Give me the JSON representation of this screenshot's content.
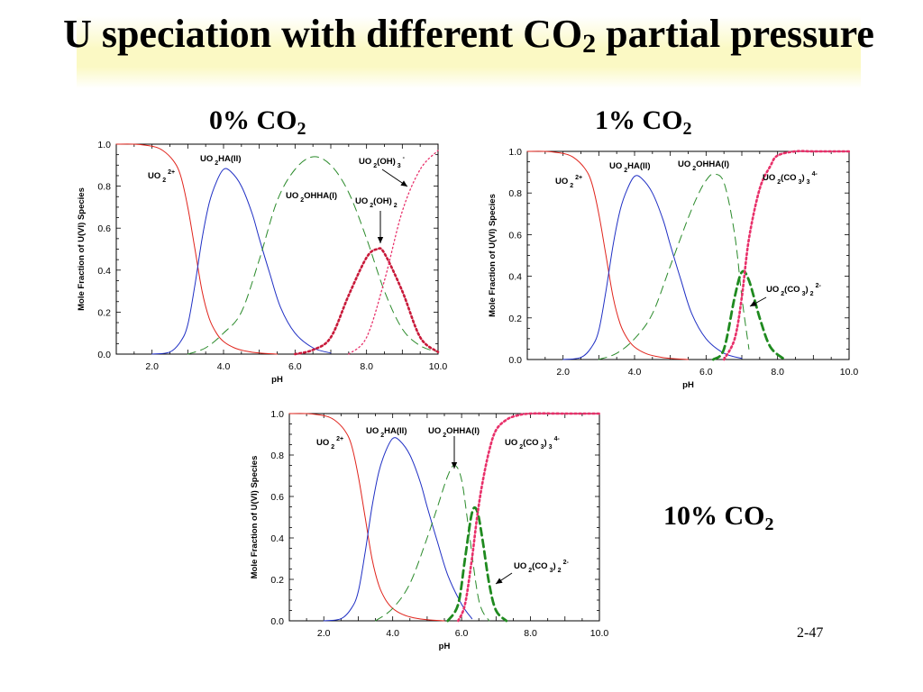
{
  "slide": {
    "title_main": "U speciation with different CO",
    "title_sub": "2",
    "title_end": " partial pressure",
    "page_number": "2-47"
  },
  "labels": {
    "p0": {
      "main": "0% CO",
      "sub": "2"
    },
    "p1": {
      "main": "1% CO",
      "sub": "2"
    },
    "p10": {
      "main": "10% CO",
      "sub": "2"
    }
  },
  "colors": {
    "uo2": "#e0241c",
    "uo2ha": "#1f2fc4",
    "uo2ohha": "#2a8a2a",
    "oh2": "#c81a3a",
    "oh3": "#e8306a",
    "co3": "#1f8a1f"
  },
  "chart_data": [
    {
      "type": "line",
      "panel": "0% CO2",
      "xlabel": "pH",
      "ylabel": "Mole Fraction of U(VI) Species",
      "xlim": [
        1,
        10
      ],
      "ylim": [
        0,
        1
      ],
      "xticks": [
        "2.0",
        "4.0",
        "6.0",
        "8.0",
        "10.0"
      ],
      "yticks": [
        "0.0",
        "0.2",
        "0.4",
        "0.6",
        "0.8",
        "1.0"
      ],
      "series": [
        {
          "name": "UO2 2+",
          "label": [
            "UO",
            "2",
            "2+"
          ],
          "color_key": "uo2",
          "style": "solid",
          "x": [
            1,
            1.5,
            2,
            2.3,
            2.6,
            2.8,
            3,
            3.2,
            3.4,
            3.6,
            3.8,
            4,
            4.3,
            4.6,
            5,
            5.5
          ],
          "y": [
            1,
            1,
            0.99,
            0.97,
            0.92,
            0.85,
            0.7,
            0.5,
            0.3,
            0.17,
            0.1,
            0.06,
            0.03,
            0.015,
            0.005,
            0
          ]
        },
        {
          "name": "UO2HA(II)",
          "label": [
            "UO",
            "2",
            "HA(II)"
          ],
          "color_key": "uo2ha",
          "style": "solid",
          "x": [
            2,
            2.5,
            2.8,
            3.0,
            3.2,
            3.4,
            3.6,
            3.8,
            4.0,
            4.2,
            4.5,
            4.8,
            5.0,
            5.3,
            5.6,
            6.0,
            6.5,
            7.0
          ],
          "y": [
            0,
            0.01,
            0.06,
            0.14,
            0.33,
            0.55,
            0.72,
            0.82,
            0.88,
            0.87,
            0.8,
            0.67,
            0.55,
            0.38,
            0.22,
            0.1,
            0.03,
            0.005
          ]
        },
        {
          "name": "UO2OHHA(I)",
          "label": [
            "UO",
            "2",
            "OHHA(I)"
          ],
          "color_key": "uo2ohha",
          "style": "dash",
          "x": [
            3,
            3.5,
            4,
            4.5,
            5,
            5.5,
            6,
            6.5,
            7,
            7.5,
            8,
            8.5,
            9,
            9.5,
            10
          ],
          "y": [
            0,
            0.03,
            0.1,
            0.2,
            0.45,
            0.73,
            0.88,
            0.94,
            0.9,
            0.77,
            0.55,
            0.3,
            0.12,
            0.04,
            0.01
          ]
        },
        {
          "name": "UO2(OH)2",
          "label": [
            "UO",
            "2",
            "(OH)",
            "2"
          ],
          "color_key": "oh2",
          "style": "dotbold",
          "x": [
            6,
            6.5,
            7,
            7.5,
            8.0,
            8.3,
            8.5,
            9,
            9.5,
            10
          ],
          "y": [
            0,
            0.02,
            0.08,
            0.28,
            0.46,
            0.5,
            0.48,
            0.3,
            0.08,
            0.01
          ]
        },
        {
          "name": "UO2(OH)3-",
          "label": [
            "UO",
            "2",
            "(OH)",
            "3",
            "-"
          ],
          "color_key": "oh3",
          "style": "dot",
          "x": [
            7.5,
            8,
            8.5,
            9,
            9.5,
            10
          ],
          "y": [
            0,
            0.08,
            0.35,
            0.68,
            0.88,
            0.97
          ]
        }
      ]
    },
    {
      "type": "line",
      "panel": "1% CO2",
      "xlabel": "pH",
      "ylabel": "Mole Fraction of U(VI) Species",
      "xlim": [
        1,
        10
      ],
      "ylim": [
        0,
        1
      ],
      "xticks": [
        "2.0",
        "4.0",
        "6.0",
        "8.0",
        "10.0"
      ],
      "yticks": [
        "0.0",
        "0.2",
        "0.4",
        "0.6",
        "0.8",
        "1.0"
      ],
      "series": [
        {
          "name": "UO2 2+",
          "label": [
            "UO",
            "2",
            "2+"
          ],
          "color_key": "uo2",
          "style": "solid",
          "x": [
            1,
            1.5,
            2,
            2.3,
            2.6,
            2.8,
            3,
            3.2,
            3.4,
            3.6,
            3.8,
            4,
            4.3,
            4.6,
            5,
            5.5
          ],
          "y": [
            1,
            1,
            0.99,
            0.97,
            0.92,
            0.85,
            0.7,
            0.5,
            0.3,
            0.17,
            0.1,
            0.06,
            0.03,
            0.015,
            0.005,
            0
          ]
        },
        {
          "name": "UO2HA(II)",
          "label": [
            "UO",
            "2",
            "HA(II)"
          ],
          "color_key": "uo2ha",
          "style": "solid",
          "x": [
            2,
            2.5,
            2.8,
            3.0,
            3.2,
            3.4,
            3.6,
            3.8,
            4.0,
            4.2,
            4.5,
            4.8,
            5.0,
            5.3,
            5.6,
            6.0,
            6.5,
            7.0
          ],
          "y": [
            0,
            0.01,
            0.06,
            0.14,
            0.33,
            0.55,
            0.72,
            0.82,
            0.88,
            0.87,
            0.8,
            0.67,
            0.55,
            0.38,
            0.22,
            0.1,
            0.03,
            0.005
          ]
        },
        {
          "name": "UO2OHHA(I)",
          "label": [
            "UO",
            "2",
            "OHHA(I)"
          ],
          "color_key": "uo2ohha",
          "style": "dash",
          "x": [
            3,
            3.5,
            4,
            4.5,
            5,
            5.5,
            5.8,
            6.0,
            6.2,
            6.5,
            6.8,
            7.0,
            7.2
          ],
          "y": [
            0,
            0.03,
            0.1,
            0.22,
            0.45,
            0.68,
            0.8,
            0.86,
            0.89,
            0.85,
            0.6,
            0.3,
            0.05
          ]
        },
        {
          "name": "UO2(CO3)2 2-",
          "label": [
            "UO",
            "2",
            "(CO",
            "3",
            ")",
            "2",
            "2-"
          ],
          "color_key": "co3",
          "style": "dashbold",
          "x": [
            6.2,
            6.5,
            6.8,
            7.0,
            7.2,
            7.5,
            7.8,
            8.2
          ],
          "y": [
            0,
            0.05,
            0.3,
            0.42,
            0.38,
            0.2,
            0.06,
            0
          ]
        },
        {
          "name": "UO2(CO3)3 4-",
          "label": [
            "UO",
            "2",
            "(CO",
            "3",
            ")",
            "3",
            "4-"
          ],
          "color_key": "oh3",
          "style": "dotbold",
          "x": [
            6.5,
            6.8,
            7.0,
            7.2,
            7.5,
            7.8,
            8.0,
            8.5,
            9,
            10
          ],
          "y": [
            0,
            0.1,
            0.3,
            0.58,
            0.82,
            0.93,
            0.98,
            1,
            1,
            1
          ]
        }
      ]
    },
    {
      "type": "line",
      "panel": "10% CO2",
      "xlabel": "pH",
      "ylabel": "Mole Fraction of U(VI) Species",
      "xlim": [
        1,
        10
      ],
      "ylim": [
        0,
        1
      ],
      "xticks": [
        "2.0",
        "4.0",
        "6.0",
        "8.0",
        "10.0"
      ],
      "yticks": [
        "0.0",
        "0.2",
        "0.4",
        "0.6",
        "0.8",
        "1.0"
      ],
      "series": [
        {
          "name": "UO2 2+",
          "label": [
            "UO",
            "2",
            "2+"
          ],
          "color_key": "uo2",
          "style": "solid",
          "x": [
            1,
            1.5,
            2,
            2.3,
            2.6,
            2.8,
            3,
            3.2,
            3.4,
            3.6,
            3.8,
            4,
            4.3,
            4.6,
            5,
            5.5
          ],
          "y": [
            1,
            1,
            0.99,
            0.97,
            0.92,
            0.85,
            0.7,
            0.5,
            0.3,
            0.17,
            0.1,
            0.06,
            0.03,
            0.015,
            0.005,
            0
          ]
        },
        {
          "name": "UO2HA(II)",
          "label": [
            "UO",
            "2",
            "HA(II)"
          ],
          "color_key": "uo2ha",
          "style": "solid",
          "x": [
            2,
            2.5,
            2.8,
            3.0,
            3.2,
            3.4,
            3.6,
            3.8,
            4.0,
            4.2,
            4.5,
            4.8,
            5.0,
            5.3,
            5.6,
            6.0,
            6.3
          ],
          "y": [
            0,
            0.01,
            0.06,
            0.14,
            0.33,
            0.55,
            0.72,
            0.82,
            0.88,
            0.87,
            0.8,
            0.67,
            0.55,
            0.38,
            0.22,
            0.08,
            0.01
          ]
        },
        {
          "name": "UO2OHHA(I)",
          "label": [
            "UO",
            "2",
            "OHHA(I)"
          ],
          "color_key": "uo2ohha",
          "style": "dash",
          "x": [
            3.5,
            4,
            4.5,
            5,
            5.3,
            5.6,
            5.8,
            6.0,
            6.2,
            6.5,
            6.8
          ],
          "y": [
            0,
            0.06,
            0.18,
            0.4,
            0.55,
            0.7,
            0.75,
            0.68,
            0.45,
            0.1,
            0
          ]
        },
        {
          "name": "UO2(CO3)2 2-",
          "label": [
            "UO",
            "2",
            "(CO",
            "3",
            ")",
            "2",
            "2-"
          ],
          "color_key": "co3",
          "style": "dashbold",
          "x": [
            5.6,
            5.9,
            6.1,
            6.3,
            6.45,
            6.6,
            6.8,
            7.0,
            7.3
          ],
          "y": [
            0,
            0.08,
            0.3,
            0.52,
            0.53,
            0.4,
            0.18,
            0.05,
            0
          ]
        },
        {
          "name": "UO2(CO3)3 4-",
          "label": [
            "UO",
            "2",
            "(CO",
            "3",
            ")",
            "3",
            "4-"
          ],
          "color_key": "oh3",
          "style": "dotbold",
          "x": [
            5.9,
            6.1,
            6.3,
            6.45,
            6.6,
            6.8,
            7.0,
            7.3,
            7.6,
            8,
            9,
            10
          ],
          "y": [
            0,
            0.08,
            0.3,
            0.5,
            0.66,
            0.82,
            0.92,
            0.97,
            0.99,
            1,
            1,
            1
          ]
        }
      ]
    }
  ]
}
